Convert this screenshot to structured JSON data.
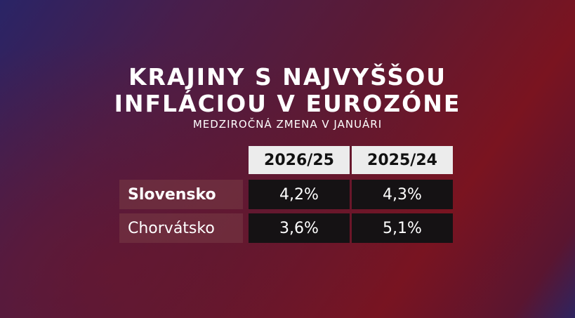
{
  "header": {
    "title_lines": [
      "KRAJINY S NAJVYŠŠOU",
      "INFLÁCIOU V EUROZÓNE"
    ],
    "subtitle": "MEDZIROČNÁ ZMENA V JANUÁRI"
  },
  "table": {
    "columns": [
      "2026/25",
      "2025/24"
    ],
    "rows": [
      {
        "label": "Slovensko",
        "values": [
          "4,2%",
          "4,3%"
        ]
      },
      {
        "label": "Chorvátsko",
        "values": [
          "3,6%",
          "5,1%"
        ]
      }
    ]
  }
}
